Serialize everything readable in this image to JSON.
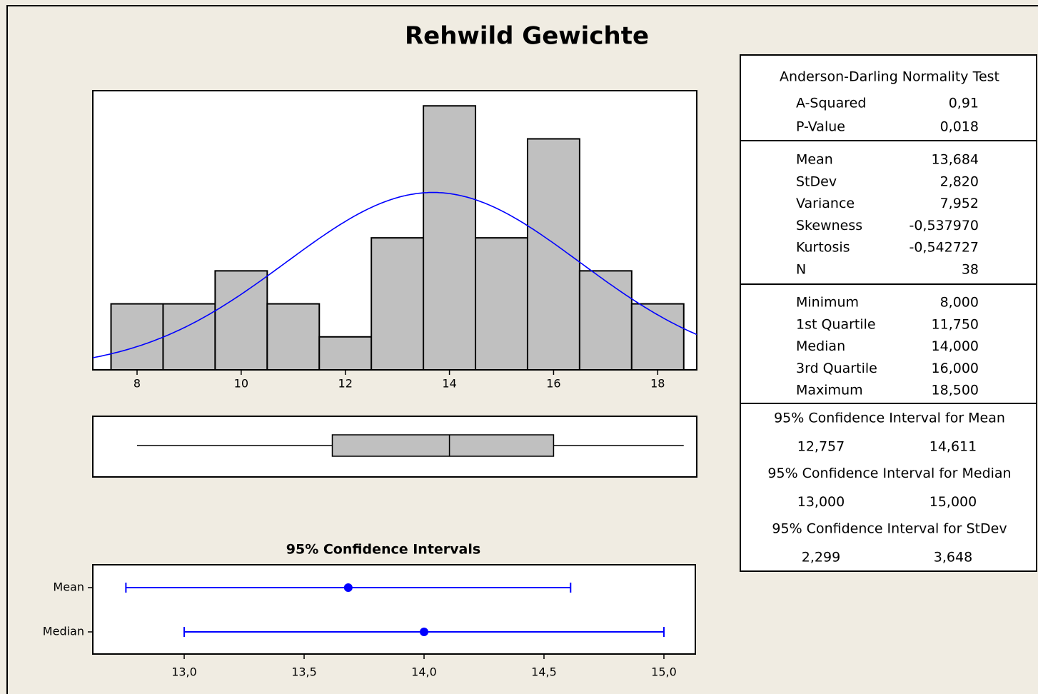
{
  "title": "Rehwild Gewichte",
  "chart_data": [
    {
      "type": "histogram",
      "bins": [
        7.5,
        8.5,
        9.5,
        10.5,
        11.5,
        12.5,
        13.5,
        14.5,
        15.5,
        16.5,
        17.5,
        18.5
      ],
      "counts": [
        2,
        2,
        3,
        2,
        1,
        4,
        8,
        4,
        7,
        3,
        2
      ],
      "color": "#c0c0c0",
      "xlim": [
        7.15,
        18.75
      ],
      "ylim": [
        0,
        8.46
      ],
      "xticks": [
        8,
        10,
        12,
        14,
        16,
        18
      ],
      "normal_fit": {
        "mean": 13.684,
        "stdev": 2.82,
        "n": 38,
        "color": "#0000ff"
      }
    },
    {
      "type": "box",
      "min": 8,
      "q1": 11.75,
      "median": 14,
      "q3": 16,
      "max": 18.5,
      "color": "#c0c0c0",
      "xlim": [
        7.15,
        18.75
      ]
    },
    {
      "type": "interval",
      "title": "95% Confidence Intervals",
      "categories": [
        "Mean",
        "Median"
      ],
      "values": [
        13.684,
        14
      ],
      "lower": [
        12.757,
        13
      ],
      "upper": [
        14.611,
        15
      ],
      "color": "#0000ff",
      "xlim": [
        12.619,
        15.131
      ],
      "xticks": [
        {
          "value": 13,
          "label": "13,0"
        },
        {
          "value": 13.5,
          "label": "13,5"
        },
        {
          "value": 14,
          "label": "14,0"
        },
        {
          "value": 14.5,
          "label": "14,5"
        },
        {
          "value": 15,
          "label": "15,0"
        }
      ]
    }
  ],
  "stats_table": {
    "header": "Anderson-Darling Normality Test",
    "sections": [
      [
        [
          "A-Squared",
          "0,91"
        ],
        [
          "P-Value",
          "0,018"
        ]
      ],
      [
        [
          "Mean",
          "13,684"
        ],
        [
          "StDev",
          "2,820"
        ],
        [
          "Variance",
          "7,952"
        ],
        [
          "Skewness",
          "-0,537970"
        ],
        [
          "Kurtosis",
          "-0,542727"
        ],
        [
          "N",
          "38"
        ]
      ],
      [
        [
          "Minimum",
          "8,000"
        ],
        [
          "1st Quartile",
          "11,750"
        ],
        [
          "Median",
          "14,000"
        ],
        [
          "3rd Quartile",
          "16,000"
        ],
        [
          "Maximum",
          "18,500"
        ]
      ]
    ],
    "intervals": [
      {
        "title": "95% Confidence Interval for Mean",
        "lower": "12,757",
        "upper": "14,611"
      },
      {
        "title": "95% Confidence Interval for Median",
        "lower": "13,000",
        "upper": "15,000"
      },
      {
        "title": "95% Confidence Interval for StDev",
        "lower": "2,299",
        "upper": "3,648"
      }
    ]
  }
}
